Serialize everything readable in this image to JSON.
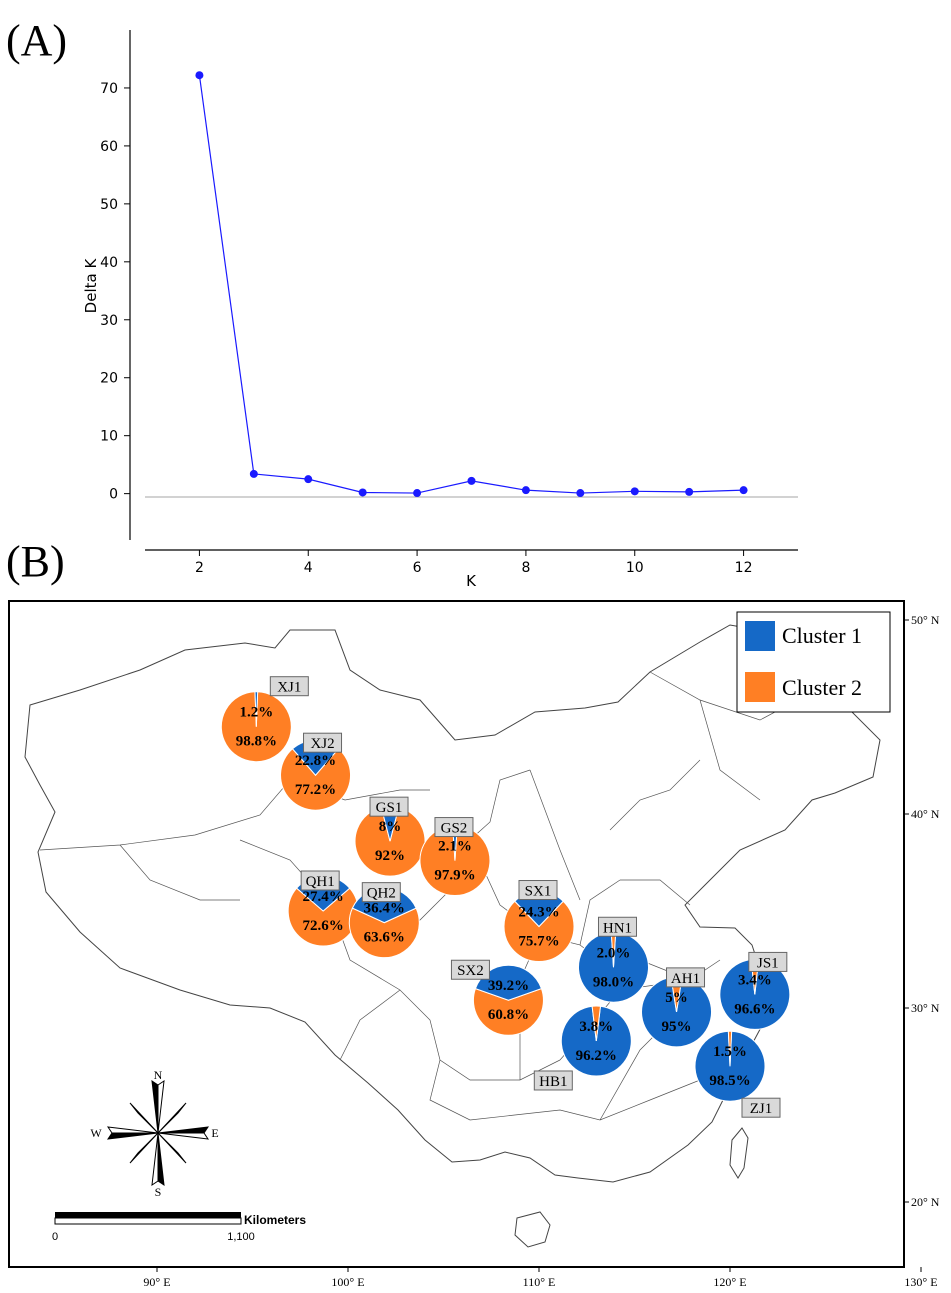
{
  "panel_labels": {
    "a": "(A)",
    "b": "(B)"
  },
  "chart_data": [
    {
      "type": "line",
      "xlabel": "K",
      "ylabel": "Delta K",
      "x": [
        2,
        3,
        4,
        5,
        6,
        7,
        8,
        9,
        10,
        11,
        12
      ],
      "series": [
        {
          "values": [
            72.2,
            3.4,
            2.5,
            0.2,
            0.1,
            2.2,
            0.6,
            0.1,
            0.4,
            0.3,
            0.6
          ]
        }
      ],
      "xlim": [
        1,
        13
      ],
      "ylim": [
        -8,
        80
      ],
      "xticks": [
        "2",
        "4",
        "6",
        "8",
        "10",
        "12"
      ],
      "yticks": [
        "0",
        "10",
        "20",
        "30",
        "40",
        "50",
        "60",
        "70"
      ],
      "grid": false,
      "color": "#1a1aff"
    },
    {
      "type": "pie",
      "legend": {
        "placement": "top-right",
        "entries": [
          "Cluster 1",
          "Cluster 2"
        ]
      },
      "colors": {
        "Cluster 1": "#1569c7",
        "Cluster 2": "#ff7f24"
      },
      "lon_ticks": [
        "90° E",
        "100° E",
        "110° E",
        "120° E",
        "130° E"
      ],
      "lat_ticks": [
        "50° N",
        "40° N",
        "30° N",
        "20° N"
      ],
      "pies": [
        {
          "site": "XJ1",
          "lon": 95.2,
          "lat": 44.5,
          "c1": 1.2,
          "c2": 98.8,
          "c1_label": "1.2%",
          "c2_label": "98.8%"
        },
        {
          "site": "XJ2",
          "lon": 98.3,
          "lat": 42.0,
          "c1": 22.8,
          "c2": 77.2,
          "c1_label": "22.8%",
          "c2_label": "77.2%"
        },
        {
          "site": "GS1",
          "lon": 102.2,
          "lat": 38.6,
          "c1": 8,
          "c2": 92,
          "c1_label": "8%",
          "c2_label": "92%"
        },
        {
          "site": "GS2",
          "lon": 105.6,
          "lat": 37.6,
          "c1": 2.1,
          "c2": 97.9,
          "c1_label": "2.1%",
          "c2_label": "97.9%"
        },
        {
          "site": "QH1",
          "lon": 98.7,
          "lat": 35.0,
          "c1": 27.4,
          "c2": 72.6,
          "c1_label": "27.4%",
          "c2_label": "72.6%"
        },
        {
          "site": "QH2",
          "lon": 101.9,
          "lat": 34.4,
          "c1": 36.4,
          "c2": 63.6,
          "c1_label": "36.4%",
          "c2_label": "63.6%"
        },
        {
          "site": "SX1",
          "lon": 110.0,
          "lat": 34.2,
          "c1": 24.3,
          "c2": 75.7,
          "c1_label": "24.3%",
          "c2_label": "75.7%"
        },
        {
          "site": "SX2",
          "lon": 108.4,
          "lat": 30.4,
          "c1": 39.2,
          "c2": 60.8,
          "c1_label": "39.2%",
          "c2_label": "60.8%"
        },
        {
          "site": "HN1",
          "lon": 113.9,
          "lat": 32.1,
          "c1": 98.0,
          "c2": 2.0,
          "c1_label": "98.0%",
          "c2_label": "2.0%"
        },
        {
          "site": "AH1",
          "lon": 117.2,
          "lat": 29.8,
          "c1": 95,
          "c2": 5,
          "c1_label": "95%",
          "c2_label": "5%"
        },
        {
          "site": "JS1",
          "lon": 121.3,
          "lat": 30.7,
          "c1": 96.6,
          "c2": 3.4,
          "c1_label": "96.6%",
          "c2_label": "3.4%"
        },
        {
          "site": "HB1",
          "lon": 113.0,
          "lat": 28.3,
          "c1": 96.2,
          "c2": 3.8,
          "c1_label": "96.2%",
          "c2_label": "3.8%"
        },
        {
          "site": "ZJ1",
          "lon": 120.0,
          "lat": 27.0,
          "c1": 98.5,
          "c2": 1.5,
          "c1_label": "98.5%",
          "c2_label": "1.5%"
        }
      ]
    }
  ],
  "compass": {
    "n": "N",
    "s": "S",
    "e": "E",
    "w": "W"
  },
  "scale_bar": {
    "title": "Kilometers",
    "start": "0",
    "end": "1,100"
  }
}
